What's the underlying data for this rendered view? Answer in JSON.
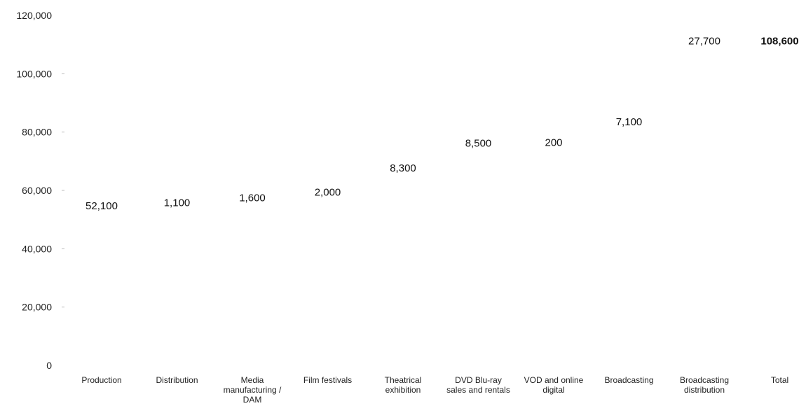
{
  "chart_data": {
    "type": "bar",
    "subtype": "waterfall",
    "ylim": [
      0,
      120000
    ],
    "yticks": [
      "0",
      "20,000",
      "40,000",
      "60,000",
      "80,000",
      "100,000",
      "120,000"
    ],
    "ytick_values": [
      0,
      20000,
      40000,
      60000,
      80000,
      100000,
      120000
    ],
    "grid": false,
    "bars_visible": false,
    "categories": [
      [
        "Production"
      ],
      [
        "Distribution"
      ],
      [
        "Media",
        "manufacturing /",
        "DAM"
      ],
      [
        "Film festivals"
      ],
      [
        "Theatrical",
        "exhibition"
      ],
      [
        "DVD Blu-ray",
        "sales and rentals"
      ],
      [
        "VOD and online",
        "digital"
      ],
      [
        "Broadcasting"
      ],
      [
        "Broadcasting",
        "distribution"
      ],
      [
        "Total"
      ]
    ],
    "values": [
      52100,
      1100,
      1600,
      2000,
      8300,
      8500,
      200,
      7100,
      27700,
      108600
    ],
    "labels": [
      "52,100",
      "1,100",
      "1,600",
      "2,000",
      "8,300",
      "8,500",
      "200",
      "7,100",
      "27,700",
      "108,600"
    ],
    "total_index": 9
  }
}
